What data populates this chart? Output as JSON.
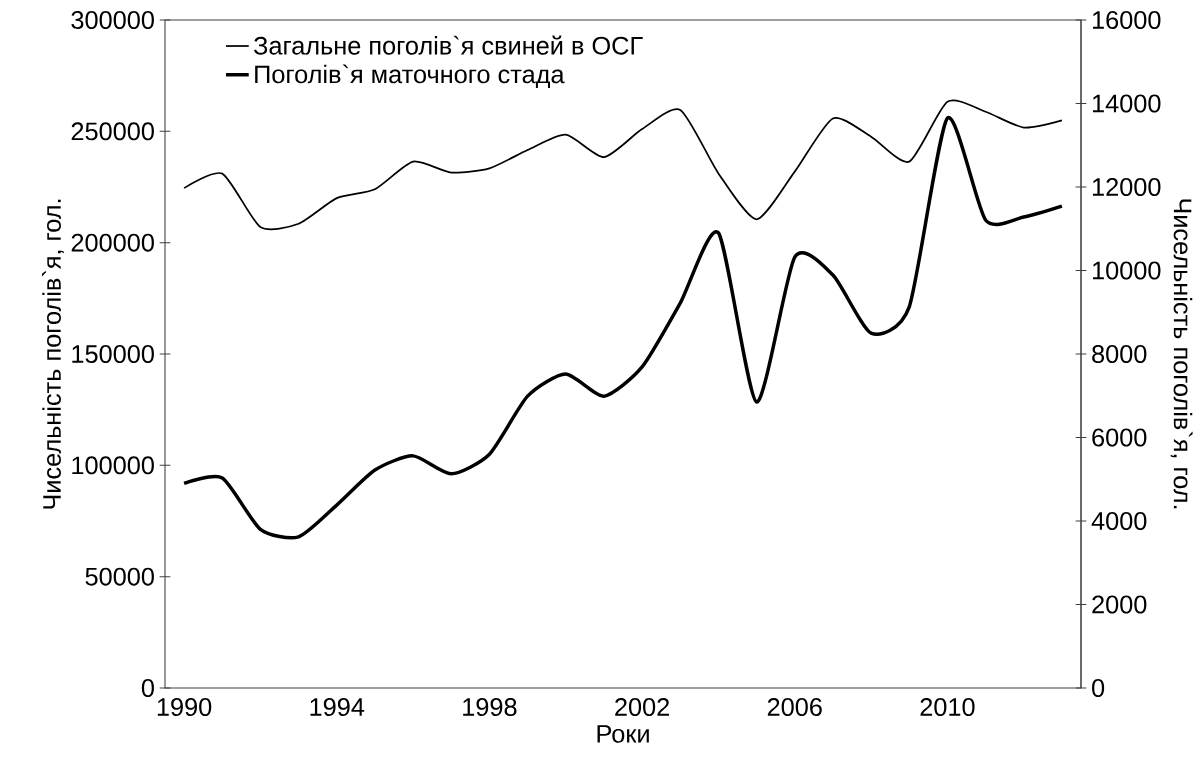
{
  "chart_data": {
    "type": "line",
    "categories": [
      "1990",
      null,
      null,
      null,
      "1994",
      null,
      null,
      null,
      "1998",
      null,
      null,
      null,
      "2002",
      null,
      null,
      null,
      "2006",
      null,
      null,
      null,
      "2010",
      null,
      null,
      null
    ],
    "xlabel": "Роки",
    "ylabel": "Чисельність поголів`я, гол.",
    "y2label": "Чисельність поголів`я, гол.",
    "series": [
      {
        "name": "Загальне поголів`я свиней в ОСГ",
        "color": "#000000",
        "values": [
          224500,
          231000,
          207000,
          208500,
          220000,
          224000,
          236400,
          231500,
          233400,
          241600,
          248500,
          238400,
          251000,
          259600,
          231100,
          210500,
          231900,
          255800,
          247600,
          236400,
          263300,
          258800,
          251700,
          254900
        ]
      },
      {
        "name": "Поголів`я маточного стада",
        "color": "#000000",
        "axis": "y2",
        "values": [
          4900,
          5030,
          3800,
          3620,
          4380,
          5220,
          5560,
          5130,
          5600,
          6990,
          7520,
          6990,
          7690,
          9220,
          10900,
          6850,
          10320,
          9890,
          8500,
          9130,
          13650,
          11210,
          11280,
          11540
        ]
      }
    ],
    "ylim": [
      0,
      300000
    ],
    "yticks": [
      0,
      50000,
      100000,
      150000,
      200000,
      250000,
      300000
    ],
    "y2lim": [
      0,
      16000
    ],
    "y2ticks": [
      0,
      2000,
      4000,
      6000,
      8000,
      10000,
      12000,
      14000,
      16000
    ],
    "legend": "top left",
    "marker": "none"
  }
}
